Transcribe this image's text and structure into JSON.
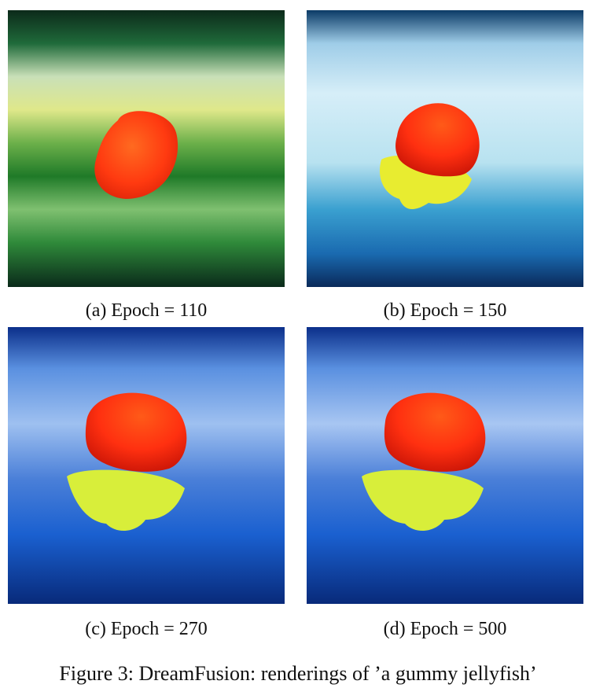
{
  "figure": {
    "caption": "Figure 3: DreamFusion: renderings of ’a gummy jellyfish’",
    "panels": [
      {
        "label": "(a) Epoch = 110",
        "background": "green",
        "subject": "red jellyfish bell without tentacles"
      },
      {
        "label": "(b) Epoch = 150",
        "background": "light-blue",
        "subject": "red jellyfish with short yellow tentacles"
      },
      {
        "label": "(c) Epoch = 270",
        "background": "blue",
        "subject": "red jellyfish with yellow-green tentacles"
      },
      {
        "label": "(d) Epoch = 500",
        "background": "blue",
        "subject": "red jellyfish with yellow-green tentacles"
      }
    ]
  },
  "colors": {
    "bell_red": "#ff3a10",
    "tentacle_yellow": "#e8f23a",
    "green_bg": "#2f8a2a",
    "blue_bg": "#1a5fd8"
  }
}
